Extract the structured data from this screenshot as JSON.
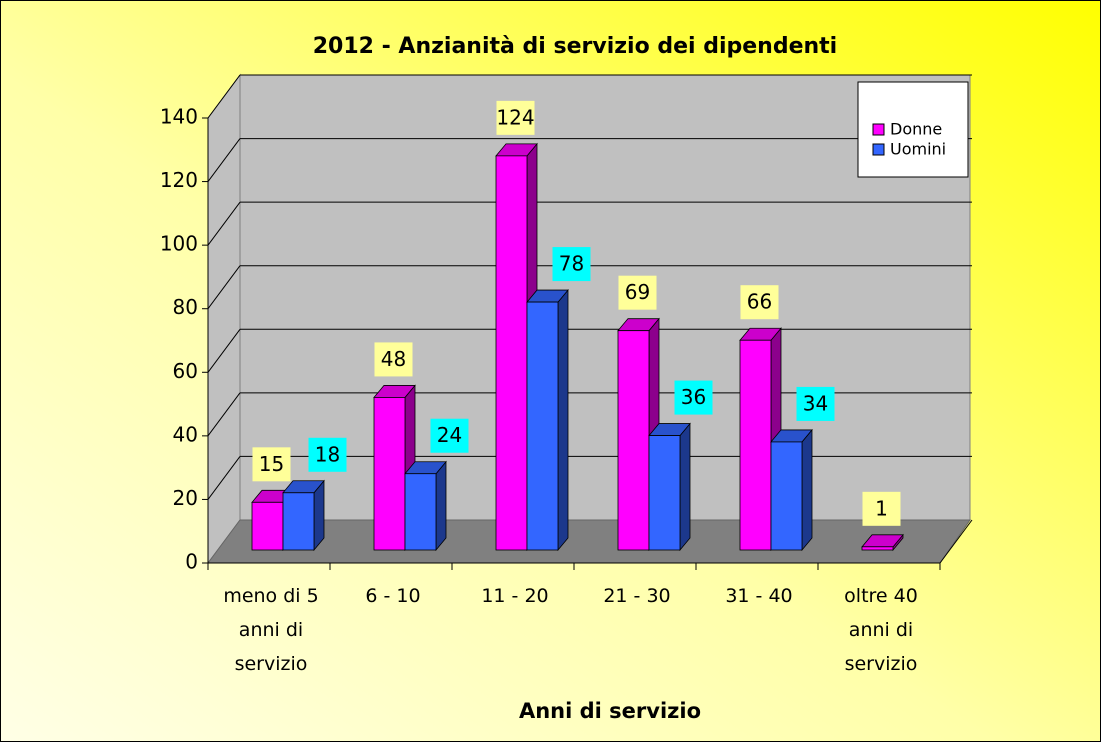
{
  "chart_data": {
    "type": "bar3d",
    "title": "2012 - Anzianità di servizio dei dipendenti",
    "x_label": "Anni di servizio",
    "categories": [
      "meno di 5 anni di servizio",
      "6 - 10",
      "11 - 20",
      "21 - 30",
      "31 - 40",
      "oltre 40 anni di servizio"
    ],
    "series": [
      {
        "name": "Donne",
        "color": "#ff00ff",
        "label_color": "#ffff99",
        "values": [
          15,
          48,
          124,
          69,
          66,
          1
        ]
      },
      {
        "name": "Uomini",
        "color": "#3366ff",
        "label_color": "#00ffff",
        "values": [
          18,
          24,
          78,
          36,
          34,
          null
        ]
      }
    ],
    "ylim": [
      0,
      140
    ],
    "yticks": [
      0,
      20,
      40,
      60,
      80,
      100,
      120,
      140
    ],
    "grid": true,
    "legend": "top-right"
  }
}
